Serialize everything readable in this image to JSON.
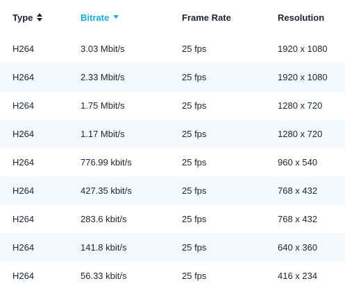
{
  "table": {
    "headers": {
      "type": "Type",
      "bitrate": "Bitrate",
      "frame_rate": "Frame Rate",
      "resolution": "Resolution"
    },
    "sort": {
      "active_column": "bitrate",
      "direction": "descending",
      "active_color": "#18a9d6"
    },
    "rows": [
      {
        "type": "H264",
        "bitrate": "3.03 Mbit/s",
        "frame_rate": "25 fps",
        "resolution": "1920 x 1080"
      },
      {
        "type": "H264",
        "bitrate": "2.33 Mbit/s",
        "frame_rate": "25 fps",
        "resolution": "1920 x 1080"
      },
      {
        "type": "H264",
        "bitrate": "1.75 Mbit/s",
        "frame_rate": "25 fps",
        "resolution": "1280 x 720"
      },
      {
        "type": "H264",
        "bitrate": "1.17 Mbit/s",
        "frame_rate": "25 fps",
        "resolution": "1280 x 720"
      },
      {
        "type": "H264",
        "bitrate": "776.99 kbit/s",
        "frame_rate": "25 fps",
        "resolution": "960 x 540"
      },
      {
        "type": "H264",
        "bitrate": "427.35 kbit/s",
        "frame_rate": "25 fps",
        "resolution": "768 x 432"
      },
      {
        "type": "H264",
        "bitrate": "283.6 kbit/s",
        "frame_rate": "25 fps",
        "resolution": "768 x 432"
      },
      {
        "type": "H264",
        "bitrate": "141.8 kbit/s",
        "frame_rate": "25 fps",
        "resolution": "640 x 360"
      },
      {
        "type": "H264",
        "bitrate": "56.33 kbit/s",
        "frame_rate": "25 fps",
        "resolution": "416 x 234"
      }
    ]
  }
}
